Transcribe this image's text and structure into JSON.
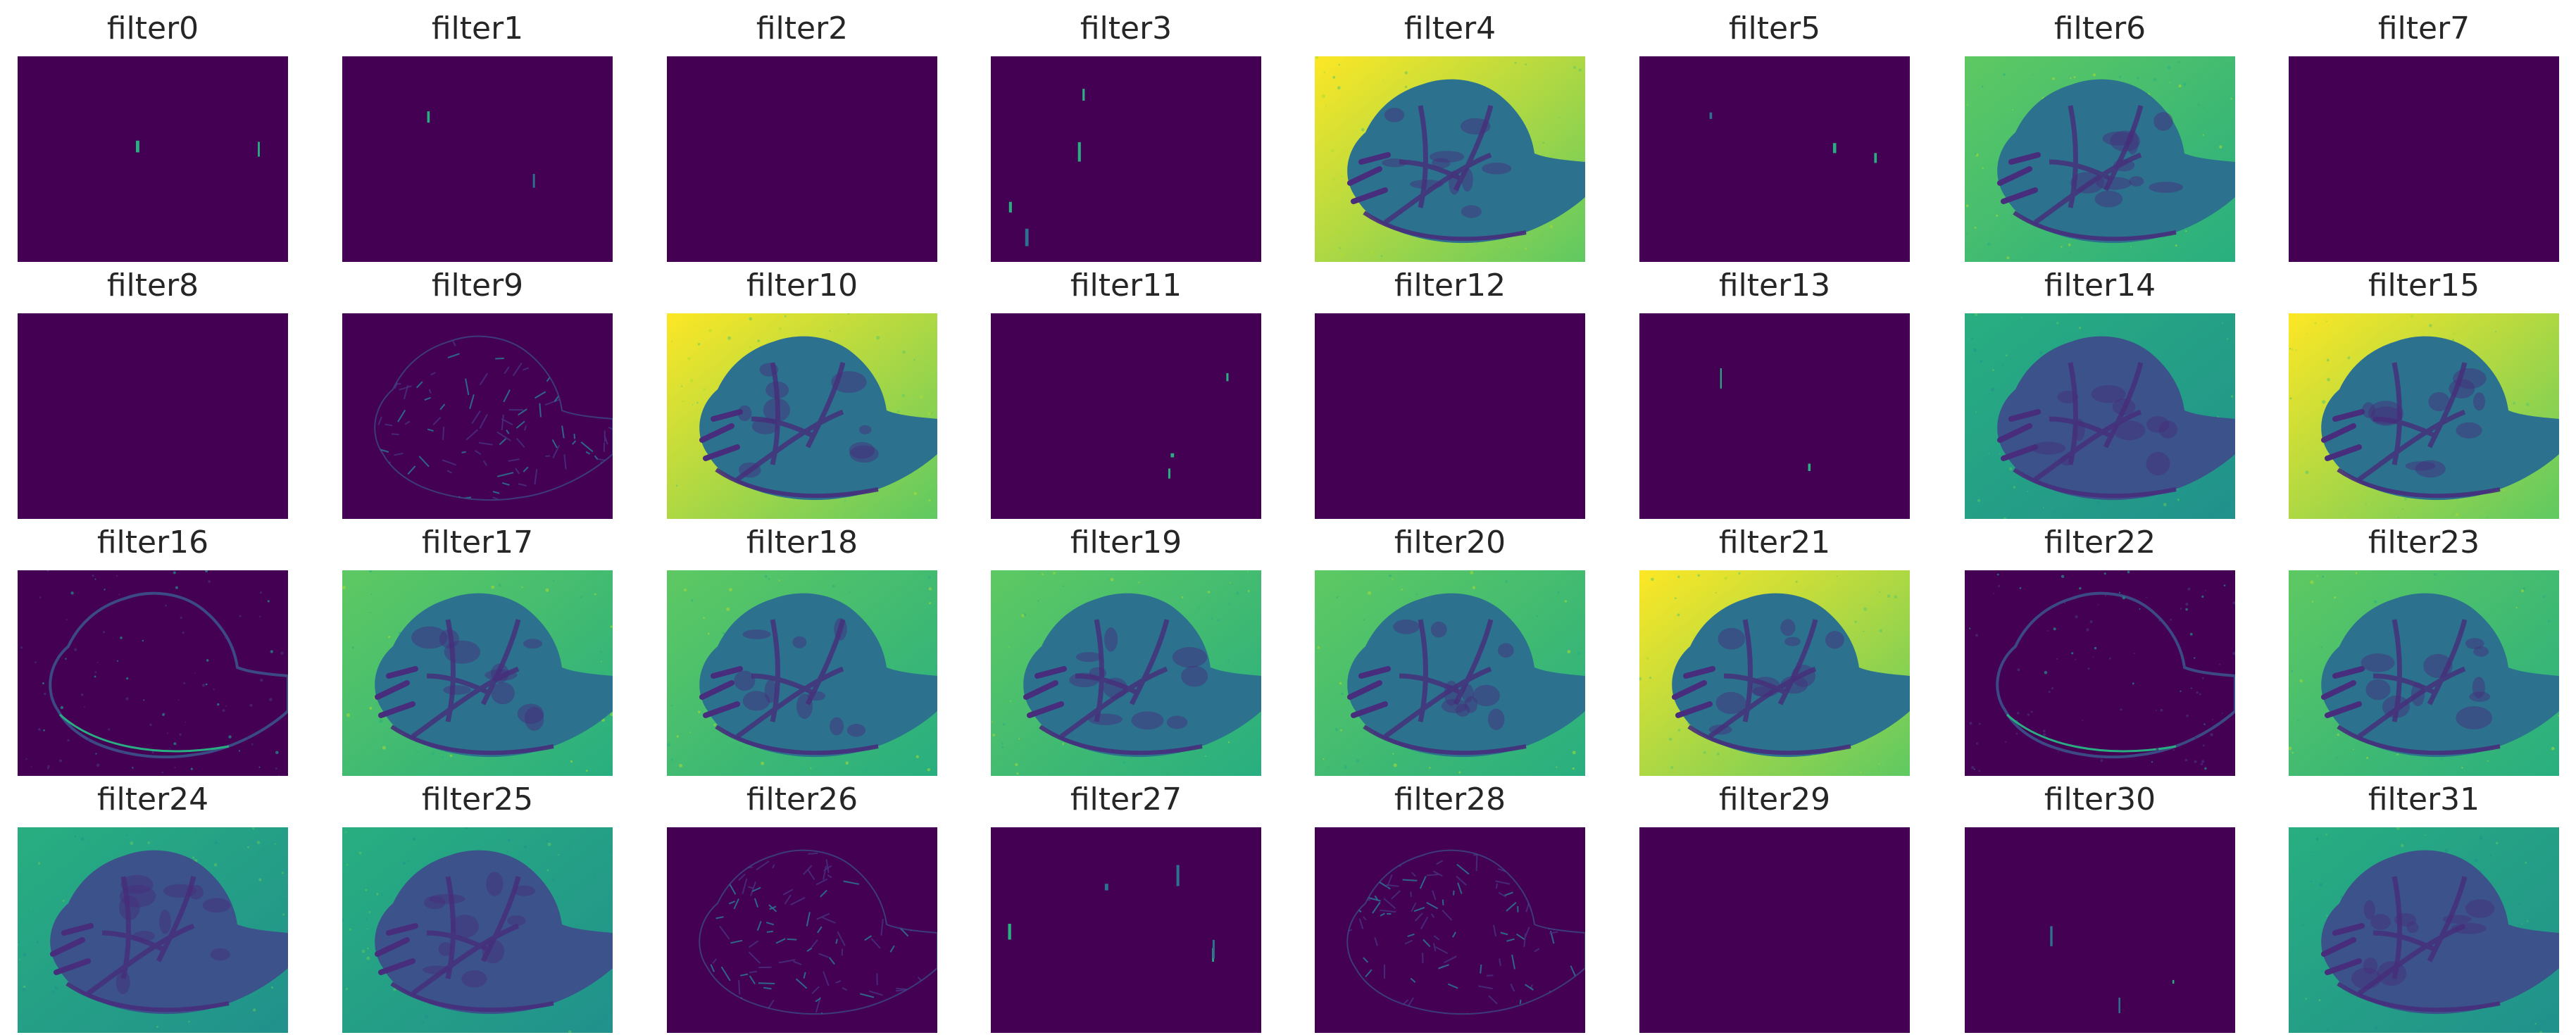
{
  "figure": {
    "colormap": "viridis",
    "palette": [
      "#440154",
      "#472d7b",
      "#3b528b",
      "#2c728e",
      "#21918c",
      "#28ae80",
      "#5ec962",
      "#addc30",
      "#fde725"
    ],
    "grid": {
      "rows": 4,
      "cols": 8
    },
    "panels": [
      {
        "title": "filter0",
        "pattern": "sparse"
      },
      {
        "title": "filter1",
        "pattern": "sparse"
      },
      {
        "title": "filter2",
        "pattern": "blank"
      },
      {
        "title": "filter3",
        "pattern": "sparse"
      },
      {
        "title": "filter4",
        "pattern": "bright-leaf"
      },
      {
        "title": "filter5",
        "pattern": "sparse"
      },
      {
        "title": "filter6",
        "pattern": "mid-leaf"
      },
      {
        "title": "filter7",
        "pattern": "blank"
      },
      {
        "title": "filter8",
        "pattern": "blank"
      },
      {
        "title": "filter9",
        "pattern": "texture-leaf"
      },
      {
        "title": "filter10",
        "pattern": "bright-leaf"
      },
      {
        "title": "filter11",
        "pattern": "sparse"
      },
      {
        "title": "filter12",
        "pattern": "blank"
      },
      {
        "title": "filter13",
        "pattern": "sparse"
      },
      {
        "title": "filter14",
        "pattern": "teal-leaf"
      },
      {
        "title": "filter15",
        "pattern": "bright-leaf"
      },
      {
        "title": "filter16",
        "pattern": "edge-dark"
      },
      {
        "title": "filter17",
        "pattern": "mid-leaf"
      },
      {
        "title": "filter18",
        "pattern": "mid-leaf"
      },
      {
        "title": "filter19",
        "pattern": "mid-leaf"
      },
      {
        "title": "filter20",
        "pattern": "mid-leaf"
      },
      {
        "title": "filter21",
        "pattern": "bright-leaf"
      },
      {
        "title": "filter22",
        "pattern": "edge-dark"
      },
      {
        "title": "filter23",
        "pattern": "mid-leaf"
      },
      {
        "title": "filter24",
        "pattern": "teal-leaf"
      },
      {
        "title": "filter25",
        "pattern": "teal-leaf"
      },
      {
        "title": "filter26",
        "pattern": "texture-leaf"
      },
      {
        "title": "filter27",
        "pattern": "sparse"
      },
      {
        "title": "filter28",
        "pattern": "texture-leaf"
      },
      {
        "title": "filter29",
        "pattern": "blank"
      },
      {
        "title": "filter30",
        "pattern": "sparse"
      },
      {
        "title": "filter31",
        "pattern": "teal-leaf"
      }
    ]
  }
}
